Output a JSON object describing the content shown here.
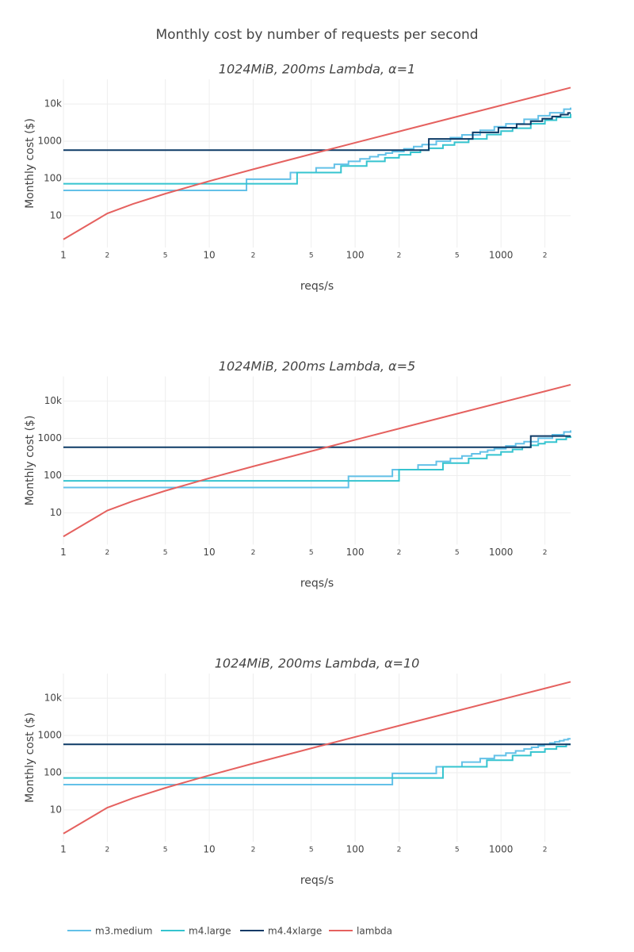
{
  "title": "Monthly cost by number of requests per second",
  "chart_data": [
    {
      "type": "line",
      "title": "1024MiB, 200ms Lambda, α=1",
      "x_label": "reqs/s",
      "y_label": "Monthly cost ($)",
      "log_x": true,
      "log_y": true,
      "grid": true,
      "xlim": [
        1,
        3000
      ],
      "ylim": [
        1.4,
        46000
      ],
      "xticks": [
        1,
        2,
        5,
        10,
        {
          "value": 20,
          "label": "2"
        },
        {
          "value": 50,
          "label": "5"
        },
        100,
        {
          "value": 200,
          "label": "2"
        },
        {
          "value": 500,
          "label": "5"
        },
        1000,
        {
          "value": 2000,
          "label": "2"
        }
      ],
      "yticks": [
        10,
        100,
        1000,
        {
          "value": 10000,
          "label": "10k"
        }
      ],
      "series": [
        {
          "name": "m3.medium",
          "color": "#63c1e8",
          "shape": "hv",
          "x": [
            1,
            18,
            36,
            54,
            72,
            90,
            108,
            126,
            144,
            162,
            180,
            216,
            252,
            288,
            360,
            450,
            540,
            720,
            900,
            1080,
            1440,
            1800,
            2160,
            2700,
            3000
          ],
          "values": [
            48,
            96,
            144,
            192,
            240,
            288,
            336,
            384,
            432,
            480,
            528,
            624,
            720,
            816,
            1008,
            1248,
            1488,
            1968,
            2448,
            2928,
            3888,
            4848,
            5808,
            7248,
            8016
          ]
        },
        {
          "name": "m4.large",
          "color": "#35c4cf",
          "shape": "hv",
          "x": [
            1,
            40,
            80,
            120,
            160,
            200,
            240,
            280,
            320,
            400,
            480,
            600,
            800,
            1000,
            1200,
            1600,
            2000,
            2400,
            3000
          ],
          "values": [
            72,
            144,
            216,
            288,
            360,
            432,
            504,
            576,
            648,
            792,
            936,
            1152,
            1512,
            1872,
            2232,
            2952,
            3672,
            4392,
            5472
          ]
        },
        {
          "name": "m4.4xlarge",
          "color": "#0d3a66",
          "shape": "hv",
          "x": [
            1,
            320,
            640,
            960,
            1280,
            1600,
            1920,
            2240,
            2560,
            2880,
            3000
          ],
          "values": [
            576,
            1152,
            1728,
            2304,
            2880,
            3456,
            4032,
            4608,
            5184,
            5760,
            5760
          ]
        },
        {
          "name": "lambda",
          "color": "#e5615f",
          "shape": "linear",
          "x": [
            1,
            2,
            3,
            5,
            10,
            20,
            50,
            100,
            200,
            500,
            1000,
            2000,
            3000
          ],
          "values": [
            2.32,
            11.5,
            20.7,
            39.1,
            85.0,
            176.8,
            452,
            912,
            1830,
            4586,
            9178,
            18363,
            27548
          ]
        }
      ]
    },
    {
      "type": "line",
      "title": "1024MiB, 200ms Lambda, α=5",
      "x_label": "reqs/s",
      "y_label": "Monthly cost ($)",
      "log_x": true,
      "log_y": true,
      "grid": true,
      "xlim": [
        1,
        3000
      ],
      "ylim": [
        1.4,
        46000
      ],
      "xticks": [
        1,
        2,
        5,
        10,
        {
          "value": 20,
          "label": "2"
        },
        {
          "value": 50,
          "label": "5"
        },
        100,
        {
          "value": 200,
          "label": "2"
        },
        {
          "value": 500,
          "label": "5"
        },
        1000,
        {
          "value": 2000,
          "label": "2"
        }
      ],
      "yticks": [
        10,
        100,
        1000,
        {
          "value": 10000,
          "label": "10k"
        }
      ],
      "series": [
        {
          "name": "m3.medium",
          "color": "#63c1e8",
          "shape": "hv",
          "x": [
            1,
            90,
            180,
            270,
            360,
            450,
            540,
            630,
            720,
            810,
            900,
            1080,
            1260,
            1440,
            1800,
            2250,
            2700,
            3000
          ],
          "values": [
            48,
            96,
            144,
            192,
            240,
            288,
            336,
            384,
            432,
            480,
            528,
            624,
            720,
            816,
            1008,
            1248,
            1488,
            1632
          ]
        },
        {
          "name": "m4.large",
          "color": "#35c4cf",
          "shape": "hv",
          "x": [
            1,
            200,
            400,
            600,
            800,
            1000,
            1200,
            1400,
            1600,
            1800,
            2000,
            2400,
            2800,
            3000
          ],
          "values": [
            72,
            144,
            216,
            288,
            360,
            432,
            504,
            576,
            648,
            720,
            792,
            936,
            1080,
            1152
          ]
        },
        {
          "name": "m4.4xlarge",
          "color": "#0d3a66",
          "shape": "hv",
          "x": [
            1,
            1600,
            3000
          ],
          "values": [
            576,
            1152,
            1152
          ]
        },
        {
          "name": "lambda",
          "color": "#e5615f",
          "shape": "linear",
          "x": [
            1,
            2,
            3,
            5,
            10,
            20,
            50,
            100,
            200,
            500,
            1000,
            2000,
            3000
          ],
          "values": [
            2.32,
            11.5,
            20.7,
            39.1,
            85.0,
            176.8,
            452,
            912,
            1830,
            4586,
            9178,
            18363,
            27548
          ]
        }
      ]
    },
    {
      "type": "line",
      "title": "1024MiB, 200ms Lambda, α=10",
      "x_label": "reqs/s",
      "y_label": "Monthly cost ($)",
      "log_x": true,
      "log_y": true,
      "grid": true,
      "xlim": [
        1,
        3000
      ],
      "ylim": [
        1.4,
        46000
      ],
      "xticks": [
        1,
        2,
        5,
        10,
        {
          "value": 20,
          "label": "2"
        },
        {
          "value": 50,
          "label": "5"
        },
        100,
        {
          "value": 200,
          "label": "2"
        },
        {
          "value": 500,
          "label": "5"
        },
        1000,
        {
          "value": 2000,
          "label": "2"
        }
      ],
      "yticks": [
        10,
        100,
        1000,
        {
          "value": 10000,
          "label": "10k"
        }
      ],
      "series": [
        {
          "name": "m3.medium",
          "color": "#63c1e8",
          "shape": "hv",
          "x": [
            1,
            180,
            360,
            540,
            720,
            900,
            1080,
            1260,
            1440,
            1620,
            1800,
            1980,
            2160,
            2340,
            2520,
            2700,
            2880,
            3000
          ],
          "values": [
            48,
            96,
            144,
            192,
            240,
            288,
            336,
            384,
            432,
            480,
            528,
            576,
            624,
            672,
            720,
            768,
            816,
            816
          ]
        },
        {
          "name": "m4.large",
          "color": "#35c4cf",
          "shape": "hv",
          "x": [
            1,
            400,
            800,
            1200,
            1600,
            2000,
            2400,
            2800,
            3000
          ],
          "values": [
            72,
            144,
            216,
            288,
            360,
            432,
            504,
            576,
            576
          ]
        },
        {
          "name": "m4.4xlarge",
          "color": "#0d3a66",
          "shape": "hv",
          "x": [
            1,
            3000
          ],
          "values": [
            576,
            576
          ]
        },
        {
          "name": "lambda",
          "color": "#e5615f",
          "shape": "linear",
          "x": [
            1,
            2,
            3,
            5,
            10,
            20,
            50,
            100,
            200,
            500,
            1000,
            2000,
            3000
          ],
          "values": [
            2.32,
            11.5,
            20.7,
            39.1,
            85.0,
            176.8,
            452,
            912,
            1830,
            4586,
            9178,
            18363,
            27548
          ]
        }
      ]
    }
  ]
}
